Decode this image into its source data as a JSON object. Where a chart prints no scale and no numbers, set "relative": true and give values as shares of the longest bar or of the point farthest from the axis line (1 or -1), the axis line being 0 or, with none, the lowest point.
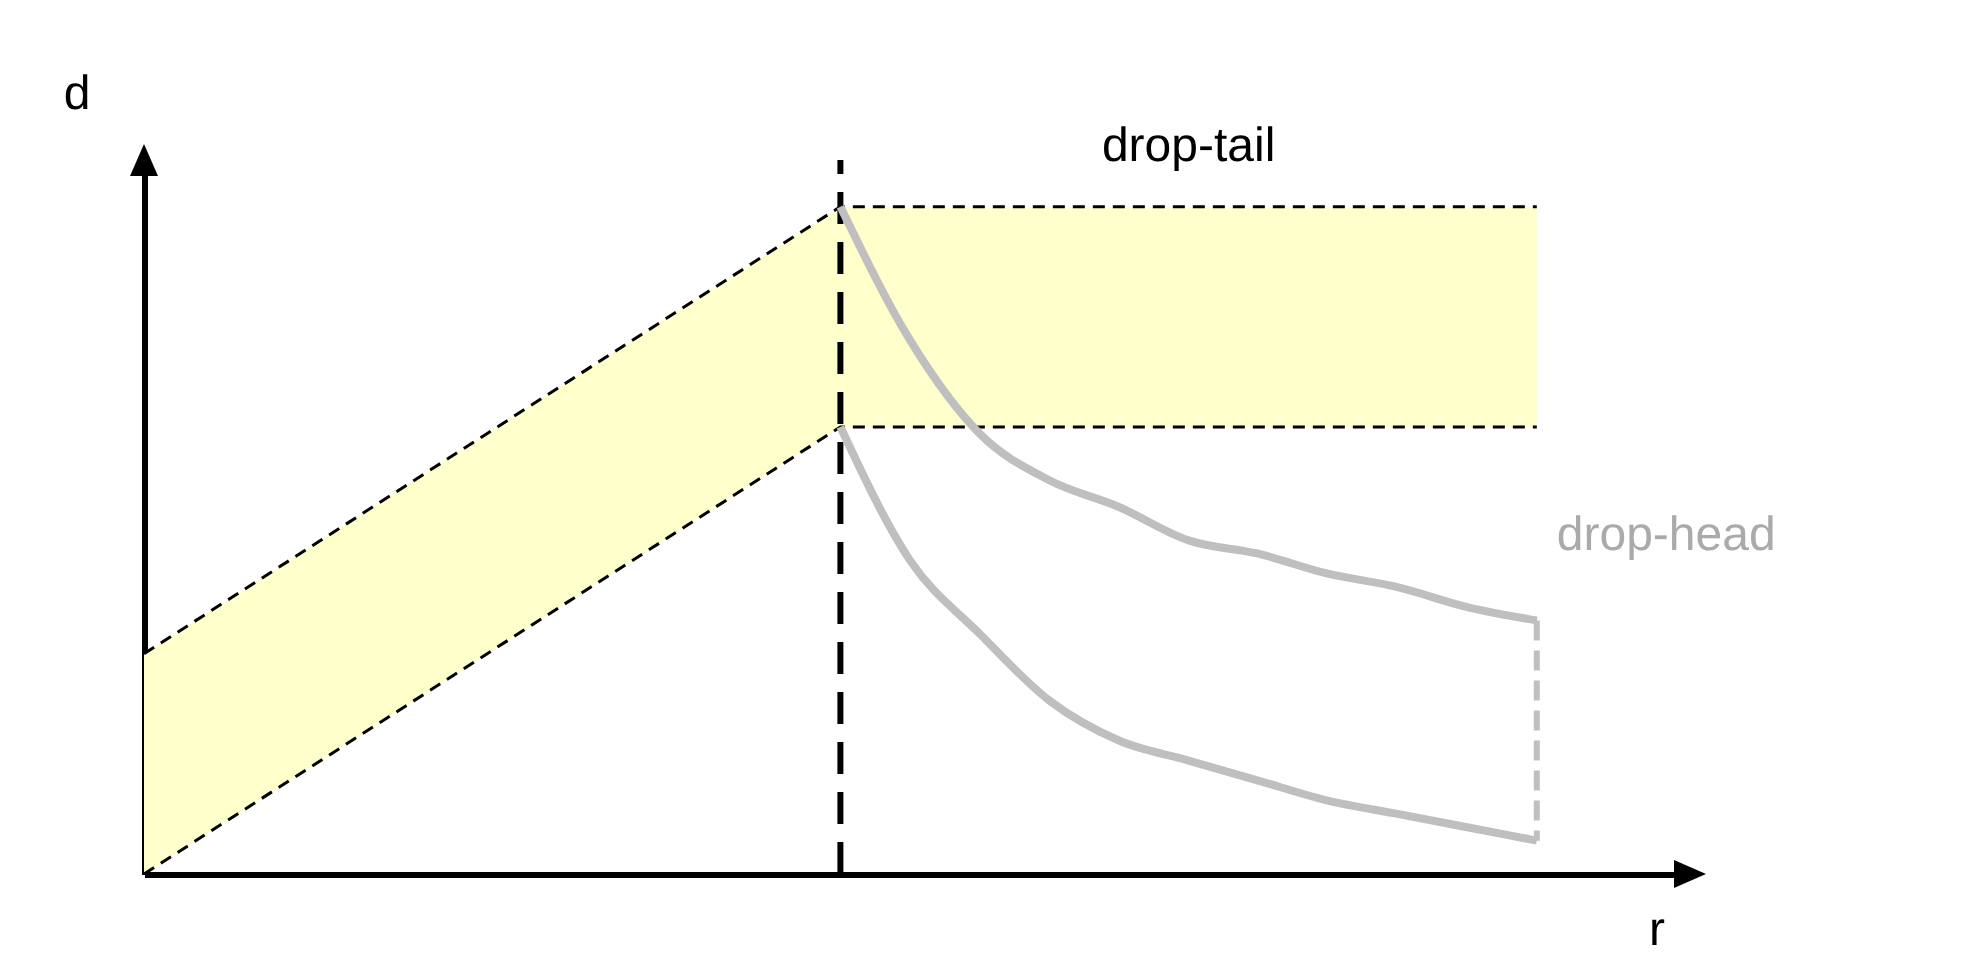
{
  "chart_data": {
    "type": "line",
    "relative": true,
    "xlabel": "r",
    "ylabel": "d",
    "categories": [
      null,
      null,
      null,
      null,
      null,
      null,
      null,
      null,
      null,
      null,
      null,
      null,
      null,
      null,
      null,
      null,
      null,
      null,
      null,
      null,
      null
    ],
    "series": [
      {
        "name": "drop-tail",
        "color": "#000000",
        "line_style": "dashed",
        "values": [
          0.33,
          null,
          null,
          null,
          null,
          null,
          null,
          null,
          null,
          null,
          1,
          null,
          null,
          null,
          null,
          null,
          null,
          null,
          null,
          null,
          1
        ],
        "lower": [
          0,
          null,
          null,
          null,
          null,
          null,
          null,
          null,
          null,
          null,
          0.67,
          null,
          null,
          null,
          null,
          null,
          null,
          null,
          null,
          null,
          0.67
        ],
        "upper": [
          0.33,
          null,
          null,
          null,
          null,
          null,
          null,
          null,
          null,
          null,
          1,
          null,
          null,
          null,
          null,
          null,
          null,
          null,
          null,
          null,
          1
        ]
      },
      {
        "color": "#000000",
        "line_style": "dashed",
        "values": [
          0,
          null,
          null,
          null,
          null,
          null,
          null,
          null,
          null,
          null,
          0.67,
          null,
          null,
          null,
          null,
          null,
          null,
          null,
          null,
          null,
          0.67
        ]
      },
      {
        "name": "drop-head",
        "color": "#bfbfbf",
        "line_style": "solid",
        "values": [
          null,
          null,
          null,
          null,
          null,
          null,
          null,
          null,
          null,
          null,
          1,
          0.8,
          0.66,
          0.59,
          0.55,
          0.5,
          0.48,
          0.45,
          0.43,
          0.4,
          0.38
        ]
      },
      {
        "color": "#bfbfbf",
        "line_style": "solid",
        "values": [
          null,
          null,
          null,
          null,
          null,
          null,
          null,
          null,
          null,
          null,
          0.67,
          0.47,
          0.36,
          0.26,
          0.2,
          0.17,
          0.14,
          0.11,
          0.09,
          0.07,
          0.05
        ]
      }
    ]
  }
}
